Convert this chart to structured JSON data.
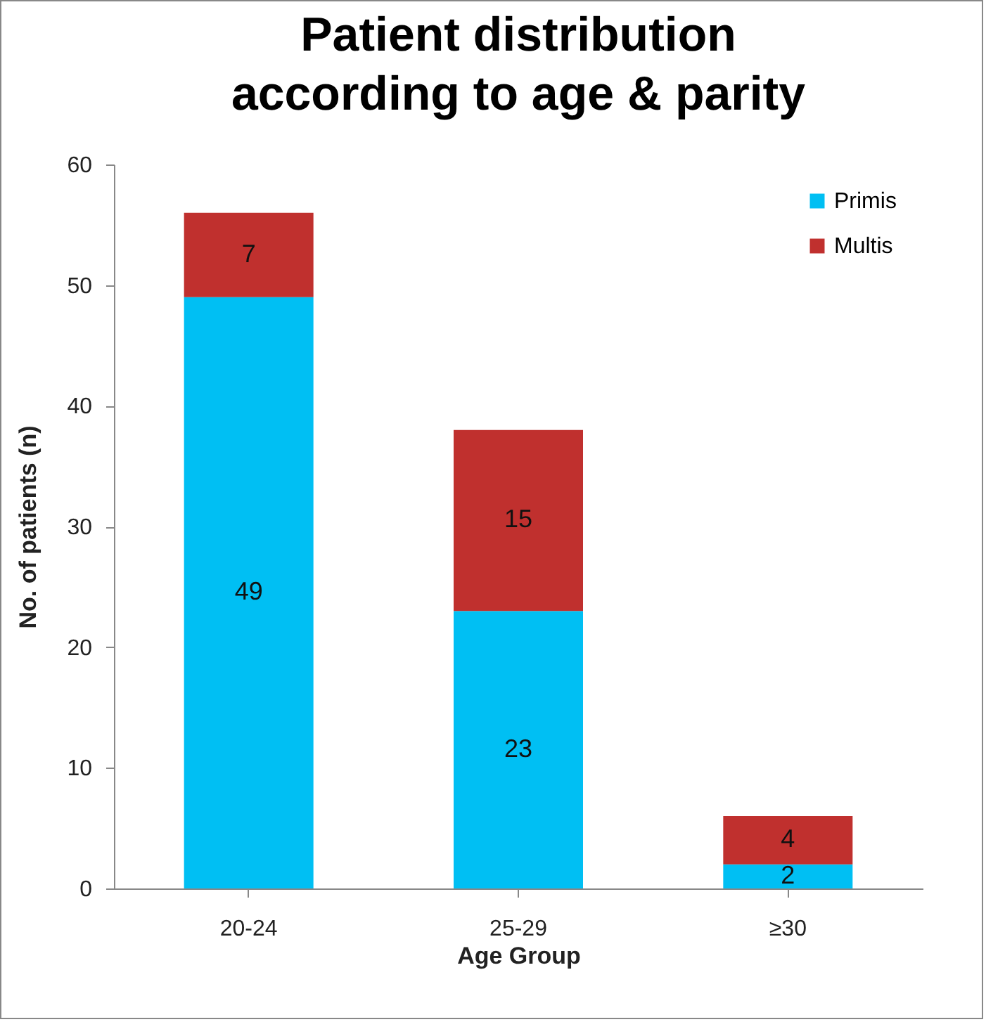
{
  "chart_data": {
    "type": "bar",
    "title": "Patient distribution according to age & parity",
    "xlabel": "Age Group",
    "ylabel": "No. of patients (n)",
    "categories": [
      "20-24",
      "25-29",
      "≥30"
    ],
    "series": [
      {
        "name": "Primis",
        "color": "#00bff3",
        "values": [
          49,
          23,
          2
        ]
      },
      {
        "name": "Multis",
        "color": "#c0302e",
        "values": [
          7,
          15,
          4
        ]
      }
    ],
    "stacked": true,
    "ylim": [
      0,
      60
    ],
    "yticks": [
      0,
      10,
      20,
      30,
      40,
      50,
      60
    ],
    "legend": "top right",
    "data_labels": true
  }
}
